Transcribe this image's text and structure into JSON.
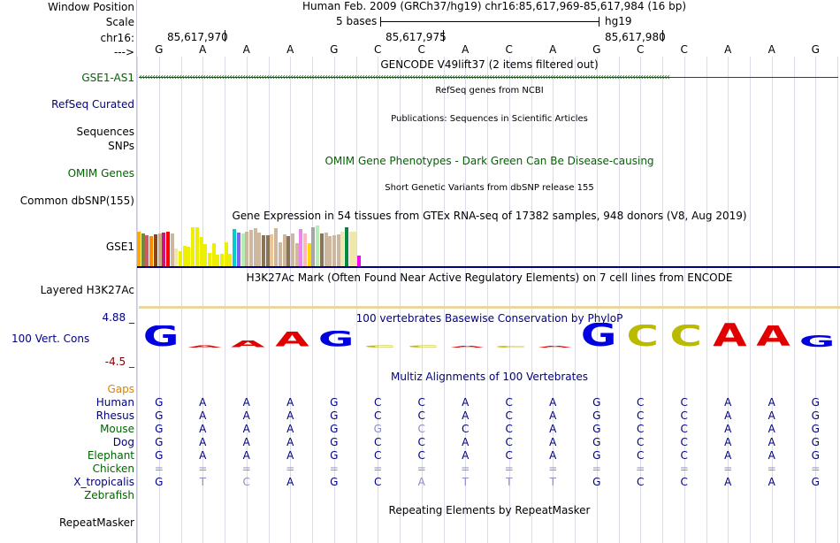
{
  "colors": {
    "navy": "#000080",
    "green": "#006400",
    "orange": "#E08000",
    "maroon": "#800000",
    "grid": "#dcdce8",
    "sep": "#000080"
  },
  "header": {
    "window_position_label": "Window Position",
    "position_text": "Human Feb. 2009 (GRCh37/hg19)   chr16:85,617,969-85,617,984 (16 bp)",
    "scale_label": "Scale",
    "scale_text": "5 bases",
    "scale_db": "hg19",
    "chrom_label": "chr16:",
    "coord1": "85,617,970",
    "coord2": "85,617,975",
    "coord3": "85,617,980",
    "arrow_label": "--->"
  },
  "bases": [
    "G",
    "A",
    "A",
    "A",
    "G",
    "C",
    "C",
    "A",
    "C",
    "A",
    "G",
    "C",
    "C",
    "A",
    "A",
    "G"
  ],
  "tracks": {
    "gencode_title": "GENCODE V49lift37 (2 items filtered out)",
    "gencode_item": "GSE1-AS1",
    "refseq_title": "RefSeq genes from NCBI",
    "refseq_label": "RefSeq Curated",
    "pubs_title": "Publications: Sequences in Scientific Articles",
    "sequences_label": "Sequences",
    "snps_label": "SNPs",
    "omim_title": "OMIM Gene Phenotypes - Dark Green Can Be Disease-causing",
    "omim_label": "OMIM Genes",
    "dbsnp_title": "Short Genetic Variants from dbSNP release 155",
    "dbsnp_label": "Common dbSNP(155)",
    "gtex_title": "Gene Expression in 54 tissues from GTEx RNA-seq of 17382 samples, 948 donors (V8, Aug 2019)",
    "gtex_gene": "GSE1",
    "h3k27ac_title": "H3K27Ac Mark (Often Found Near Active Regulatory Elements) on 7 cell lines from ENCODE",
    "h3k27ac_label": "Layered H3K27Ac",
    "phylop_title": "100 vertebrates Basewise Conservation by PhyloP",
    "phylop_label": "100 Vert. Cons",
    "phylop_max": "4.88 _",
    "phylop_min": "-4.5 _",
    "multiz_title": "Multiz Alignments of 100 Vertebrates",
    "gaps_label": "Gaps",
    "rmsk_title": "Repeating Elements by RepeatMasker",
    "rmsk_label": "RepeatMasker"
  },
  "gtex_bars": [
    {
      "color": "#FFAA00",
      "value": 40
    },
    {
      "color": "#6E8B3D",
      "value": 38
    },
    {
      "color": "#CD5C5C",
      "value": 36
    },
    {
      "color": "#FF8C00",
      "value": 35
    },
    {
      "color": "#8B4513",
      "value": 37
    },
    {
      "color": "#CDAA7D",
      "value": 38
    },
    {
      "color": "#C71585",
      "value": 39
    },
    {
      "color": "#FF0000",
      "value": 40
    },
    {
      "color": "#CDB79E",
      "value": 38
    },
    {
      "color": "#EEE8AA",
      "value": 20
    },
    {
      "color": "#EEEE00",
      "value": 17
    },
    {
      "color": "#EEEE00",
      "value": 23
    },
    {
      "color": "#EEEE00",
      "value": 22
    },
    {
      "color": "#EEEE00",
      "value": 45
    },
    {
      "color": "#EEEE00",
      "value": 45
    },
    {
      "color": "#EEEE00",
      "value": 34
    },
    {
      "color": "#EEEE00",
      "value": 26
    },
    {
      "color": "#EEEE00",
      "value": 15
    },
    {
      "color": "#EEEE00",
      "value": 27
    },
    {
      "color": "#EEEE00",
      "value": 13
    },
    {
      "color": "#EEEE00",
      "value": 14
    },
    {
      "color": "#EEEE00",
      "value": 28
    },
    {
      "color": "#EEEE00",
      "value": 14
    },
    {
      "color": "#00CDCD",
      "value": 43
    },
    {
      "color": "#7A67EE",
      "value": 39
    },
    {
      "color": "#B4EEB4",
      "value": 38
    },
    {
      "color": "#CDB79E",
      "value": 40
    },
    {
      "color": "#CDB79E",
      "value": 42
    },
    {
      "color": "#CDB79E",
      "value": 44
    },
    {
      "color": "#CDB79E",
      "value": 39
    },
    {
      "color": "#8B7355",
      "value": 36
    },
    {
      "color": "#8B7355",
      "value": 36
    },
    {
      "color": "#EEC591",
      "value": 37
    },
    {
      "color": "#CDB79E",
      "value": 44
    },
    {
      "color": "#CDB79E",
      "value": 28
    },
    {
      "color": "#CDB79E",
      "value": 37
    },
    {
      "color": "#8B7355",
      "value": 35
    },
    {
      "color": "#CDB79E",
      "value": 38
    },
    {
      "color": "#CDB79E",
      "value": 27
    },
    {
      "color": "#EE82EE",
      "value": 43
    },
    {
      "color": "#FFB6C1",
      "value": 38
    },
    {
      "color": "#FFD700",
      "value": 27
    },
    {
      "color": "#A6A6A6",
      "value": 45
    },
    {
      "color": "#B4EEB4",
      "value": 47
    },
    {
      "color": "#8B7355",
      "value": 38
    },
    {
      "color": "#CDB79E",
      "value": 39
    },
    {
      "color": "#CDB79E",
      "value": 35
    },
    {
      "color": "#CDB79E",
      "value": 36
    },
    {
      "color": "#CDB79E",
      "value": 37
    },
    {
      "color": "#EEE8AA",
      "value": 40
    },
    {
      "color": "#008B45",
      "value": 45
    },
    {
      "color": "#EEE8AA",
      "value": 40
    },
    {
      "color": "#EEE8AA",
      "value": 40
    },
    {
      "color": "#FF00FF",
      "value": 12
    }
  ],
  "phylop": [
    {
      "base": "G",
      "value": 0.9,
      "color": "#0000E0"
    },
    {
      "base": "A",
      "value": 0.1,
      "color": "#E00000"
    },
    {
      "base": "A",
      "value": 0.28,
      "color": "#E00000"
    },
    {
      "base": "A",
      "value": 0.65,
      "color": "#E00000"
    },
    {
      "base": "G",
      "value": 0.68,
      "color": "#0000E0"
    },
    {
      "base": "C",
      "value": 0.12,
      "color": "#BABA00"
    },
    {
      "base": "C",
      "value": 0.12,
      "color": "#BABA00"
    },
    {
      "base": "A",
      "value": 0.06,
      "color": "#E00000"
    },
    {
      "base": "C",
      "value": 0.05,
      "color": "#BABA00"
    },
    {
      "base": "A",
      "value": 0.03,
      "color": "#E00000"
    },
    {
      "base": "G",
      "value": 1.0,
      "color": "#0000E0"
    },
    {
      "base": "C",
      "value": 0.92,
      "color": "#BABA00"
    },
    {
      "base": "C",
      "value": 0.92,
      "color": "#BABA00"
    },
    {
      "base": "A",
      "value": 1.0,
      "color": "#E00000"
    },
    {
      "base": "A",
      "value": 0.9,
      "color": "#E00000"
    },
    {
      "base": "G",
      "value": 0.5,
      "color": "#0000E0"
    }
  ],
  "alignments": [
    {
      "species": "Human",
      "color": "#000080",
      "seq": "GAAAGCCACAGCCAAG",
      "dim": []
    },
    {
      "species": "Rhesus",
      "color": "#000080",
      "seq": "GAAAGCCACAGCCAAG",
      "dim": []
    },
    {
      "species": "Mouse",
      "color": "#006400",
      "seq": "GAAAGGCCCAGCCAAG",
      "dim": [
        5,
        6
      ]
    },
    {
      "species": "Dog",
      "color": "#000080",
      "seq": "GAAAGCCACAGCCAAG",
      "dim": []
    },
    {
      "species": "Elephant",
      "color": "#006400",
      "seq": "GAAAGCCACAGCCAAG",
      "dim": []
    },
    {
      "species": "Chicken",
      "color": "#006400",
      "seq": "================",
      "dim": [
        0,
        1,
        2,
        3,
        4,
        5,
        6,
        7,
        8,
        9,
        10,
        11,
        12,
        13,
        14,
        15
      ]
    },
    {
      "species": "X_tropicalis",
      "color": "#000080",
      "seq": "GTCAGCATTTGCCAAG",
      "dim": [
        1,
        2,
        6,
        7,
        8,
        9
      ]
    },
    {
      "species": "Zebrafish",
      "color": "#006400",
      "seq": "",
      "dim": []
    }
  ]
}
